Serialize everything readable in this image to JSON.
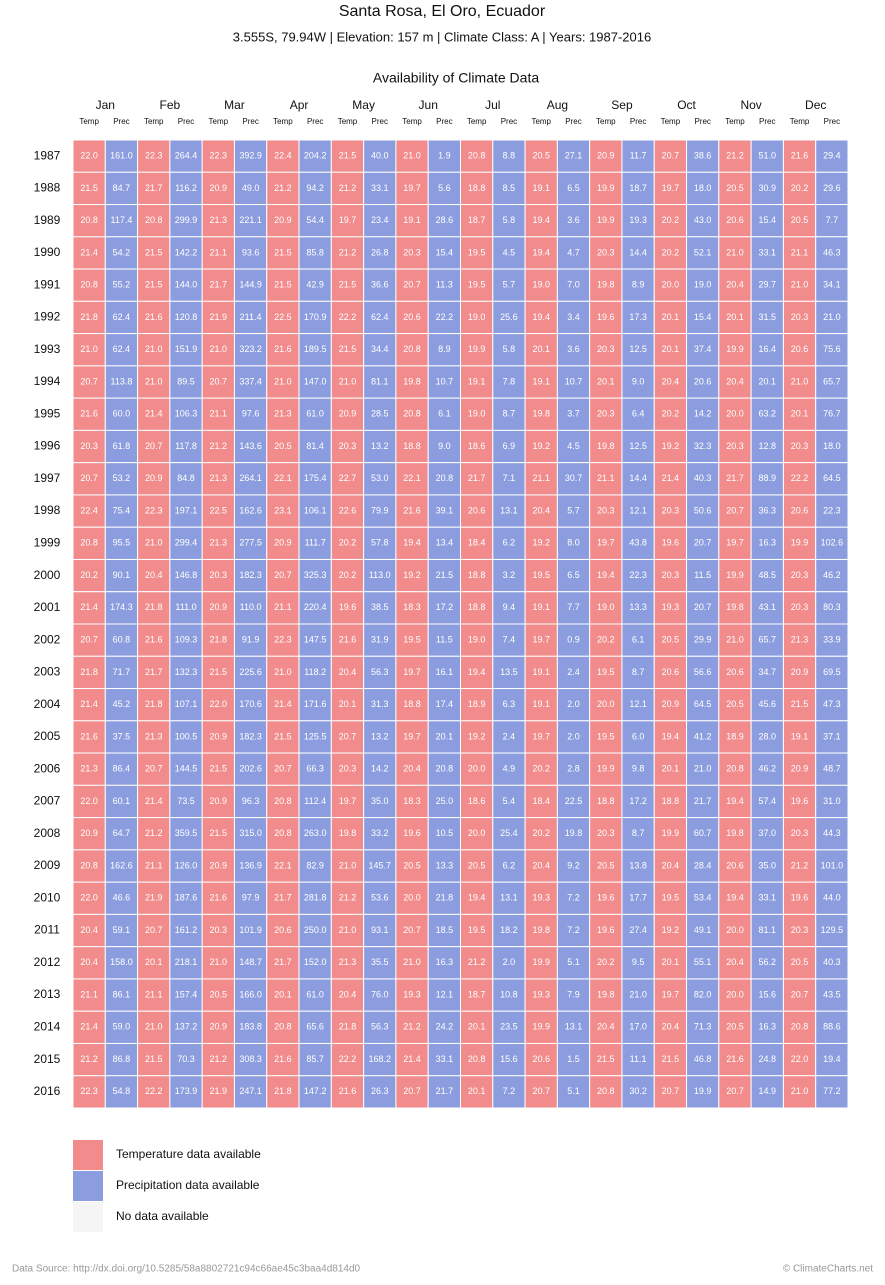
{
  "header": {
    "title": "Santa Rosa, El Oro, Ecuador",
    "subtitle": "3.555S, 79.94W | Elevation: 157 m | Climate Class: A | Years: 1987-2016",
    "chart_title": "Availability of Climate Data"
  },
  "table": {
    "months": [
      "Jan",
      "Feb",
      "Mar",
      "Apr",
      "May",
      "Jun",
      "Jul",
      "Aug",
      "Sep",
      "Oct",
      "Nov",
      "Dec"
    ],
    "subheaders": [
      "Temp",
      "Prec"
    ],
    "colors": {
      "temp": "#f28b8b",
      "prec": "#8b9ddf",
      "none": "#f5f5f5"
    },
    "rows": [
      {
        "year": "1987",
        "cells": [
          "22.0",
          "161.0",
          "22.3",
          "264.4",
          "22.3",
          "392.9",
          "22.4",
          "204.2",
          "21.5",
          "40.0",
          "21.0",
          "1.9",
          "20.8",
          "8.8",
          "20.5",
          "27.1",
          "20.9",
          "11.7",
          "20.7",
          "38.6",
          "21.2",
          "51.0",
          "21.6",
          "29.4"
        ]
      },
      {
        "year": "1988",
        "cells": [
          "21.5",
          "84.7",
          "21.7",
          "116.2",
          "20.9",
          "49.0",
          "21.2",
          "94.2",
          "21.2",
          "33.1",
          "19.7",
          "5.6",
          "18.8",
          "8.5",
          "19.1",
          "6.5",
          "19.9",
          "18.7",
          "19.7",
          "18.0",
          "20.5",
          "30.9",
          "20.2",
          "29.6"
        ]
      },
      {
        "year": "1989",
        "cells": [
          "20.8",
          "117.4",
          "20.8",
          "299.9",
          "21.3",
          "221.1",
          "20.9",
          "54.4",
          "19.7",
          "23.4",
          "19.1",
          "28.6",
          "18.7",
          "5.8",
          "19.4",
          "3.6",
          "19.9",
          "19.3",
          "20.2",
          "43.0",
          "20.6",
          "15.4",
          "20.5",
          "7.7"
        ]
      },
      {
        "year": "1990",
        "cells": [
          "21.4",
          "54.2",
          "21.5",
          "142.2",
          "21.1",
          "93.6",
          "21.5",
          "85.8",
          "21.2",
          "26.8",
          "20.3",
          "15.4",
          "19.5",
          "4.5",
          "19.4",
          "4.7",
          "20.3",
          "14.4",
          "20.2",
          "52.1",
          "21.0",
          "33.1",
          "21.1",
          "46.3"
        ]
      },
      {
        "year": "1991",
        "cells": [
          "20.8",
          "55.2",
          "21.5",
          "144.0",
          "21.7",
          "144.9",
          "21.5",
          "42.9",
          "21.5",
          "36.6",
          "20.7",
          "11.3",
          "19.5",
          "5.7",
          "19.0",
          "7.0",
          "19.8",
          "8.9",
          "20.0",
          "19.0",
          "20.4",
          "29.7",
          "21.0",
          "34.1"
        ]
      },
      {
        "year": "1992",
        "cells": [
          "21.8",
          "62.4",
          "21.6",
          "120.8",
          "21.9",
          "211.4",
          "22.5",
          "170.9",
          "22.2",
          "62.4",
          "20.6",
          "22.2",
          "19.0",
          "25.6",
          "19.4",
          "3.4",
          "19.6",
          "17.3",
          "20.1",
          "15.4",
          "20.1",
          "31.5",
          "20.3",
          "21.0"
        ]
      },
      {
        "year": "1993",
        "cells": [
          "21.0",
          "62.4",
          "21.0",
          "151.9",
          "21.0",
          "323.2",
          "21.6",
          "189.5",
          "21.5",
          "34.4",
          "20.8",
          "8.9",
          "19.9",
          "5.8",
          "20.1",
          "3.6",
          "20.3",
          "12.5",
          "20.1",
          "37.4",
          "19.9",
          "16.4",
          "20.6",
          "75.6"
        ]
      },
      {
        "year": "1994",
        "cells": [
          "20.7",
          "113.8",
          "21.0",
          "89.5",
          "20.7",
          "337.4",
          "21.0",
          "147.0",
          "21.0",
          "81.1",
          "19.8",
          "10.7",
          "19.1",
          "7.8",
          "19.1",
          "10.7",
          "20.1",
          "9.0",
          "20.4",
          "20.6",
          "20.4",
          "20.1",
          "21.0",
          "65.7"
        ]
      },
      {
        "year": "1995",
        "cells": [
          "21.6",
          "60.0",
          "21.4",
          "106.3",
          "21.1",
          "97.6",
          "21.3",
          "61.0",
          "20.9",
          "28.5",
          "20.8",
          "6.1",
          "19.0",
          "8.7",
          "19.8",
          "3.7",
          "20.3",
          "6.4",
          "20.2",
          "14.2",
          "20.0",
          "63.2",
          "20.1",
          "76.7"
        ]
      },
      {
        "year": "1996",
        "cells": [
          "20.3",
          "61.8",
          "20.7",
          "117.8",
          "21.2",
          "143.6",
          "20.5",
          "81.4",
          "20.3",
          "13.2",
          "18.8",
          "9.0",
          "18.6",
          "6.9",
          "19.2",
          "4.5",
          "19.8",
          "12.5",
          "19.2",
          "32.3",
          "20.3",
          "12.8",
          "20.3",
          "18.0"
        ]
      },
      {
        "year": "1997",
        "cells": [
          "20.7",
          "53.2",
          "20.9",
          "84.8",
          "21.3",
          "264.1",
          "22.1",
          "175.4",
          "22.7",
          "53.0",
          "22.1",
          "20.8",
          "21.7",
          "7.1",
          "21.1",
          "30.7",
          "21.1",
          "14.4",
          "21.4",
          "40.3",
          "21.7",
          "88.9",
          "22.2",
          "64.5"
        ]
      },
      {
        "year": "1998",
        "cells": [
          "22.4",
          "75.4",
          "22.3",
          "197.1",
          "22.5",
          "162.6",
          "23.1",
          "106.1",
          "22.6",
          "79.9",
          "21.6",
          "39.1",
          "20.6",
          "13.1",
          "20.4",
          "5.7",
          "20.3",
          "12.1",
          "20.3",
          "50.6",
          "20.7",
          "36.3",
          "20.6",
          "22.3"
        ]
      },
      {
        "year": "1999",
        "cells": [
          "20.8",
          "95.5",
          "21.0",
          "299.4",
          "21.3",
          "277.5",
          "20.9",
          "111.7",
          "20.2",
          "57.8",
          "19.4",
          "13.4",
          "18.4",
          "6.2",
          "19.2",
          "8.0",
          "19.7",
          "43.8",
          "19.6",
          "20.7",
          "19.7",
          "16.3",
          "19.9",
          "102.6"
        ]
      },
      {
        "year": "2000",
        "cells": [
          "20.2",
          "90.1",
          "20.4",
          "146.8",
          "20.3",
          "182.3",
          "20.7",
          "325.3",
          "20.2",
          "113.0",
          "19.2",
          "21.5",
          "18.8",
          "3.2",
          "19.5",
          "6.5",
          "19.4",
          "22.3",
          "20.3",
          "11.5",
          "19.9",
          "48.5",
          "20.3",
          "46.2"
        ]
      },
      {
        "year": "2001",
        "cells": [
          "21.4",
          "174.3",
          "21.8",
          "111.0",
          "20.9",
          "110.0",
          "21.1",
          "220.4",
          "19.6",
          "38.5",
          "18.3",
          "17.2",
          "18.8",
          "9.4",
          "19.1",
          "7.7",
          "19.0",
          "13.3",
          "19.3",
          "20.7",
          "19.8",
          "43.1",
          "20.3",
          "80.3"
        ]
      },
      {
        "year": "2002",
        "cells": [
          "20.7",
          "60.8",
          "21.6",
          "109.3",
          "21.8",
          "91.9",
          "22.3",
          "147.5",
          "21.6",
          "31.9",
          "19.5",
          "11.5",
          "19.0",
          "7.4",
          "19.7",
          "0.9",
          "20.2",
          "6.1",
          "20.5",
          "29.9",
          "21.0",
          "65.7",
          "21.3",
          "33.9"
        ]
      },
      {
        "year": "2003",
        "cells": [
          "21.8",
          "71.7",
          "21.7",
          "132.3",
          "21.5",
          "225.6",
          "21.0",
          "118.2",
          "20.4",
          "56.3",
          "19.7",
          "16.1",
          "19.4",
          "13.5",
          "19.1",
          "2.4",
          "19.5",
          "8.7",
          "20.6",
          "56.6",
          "20.6",
          "34.7",
          "20.9",
          "69.5"
        ]
      },
      {
        "year": "2004",
        "cells": [
          "21.4",
          "45.2",
          "21.8",
          "107.1",
          "22.0",
          "170.6",
          "21.4",
          "171.6",
          "20.1",
          "31.3",
          "18.8",
          "17.4",
          "18.9",
          "6.3",
          "19.1",
          "2.0",
          "20.0",
          "12.1",
          "20.9",
          "64.5",
          "20.5",
          "45.6",
          "21.5",
          "47.3"
        ]
      },
      {
        "year": "2005",
        "cells": [
          "21.6",
          "37.5",
          "21.3",
          "100.5",
          "20.9",
          "182.3",
          "21.5",
          "125.5",
          "20.7",
          "13.2",
          "19.7",
          "20.1",
          "19.2",
          "2.4",
          "19.7",
          "2.0",
          "19.5",
          "6.0",
          "19.4",
          "41.2",
          "18.9",
          "28.0",
          "19.1",
          "37.1"
        ]
      },
      {
        "year": "2006",
        "cells": [
          "21.3",
          "86.4",
          "20.7",
          "144.5",
          "21.5",
          "202.6",
          "20.7",
          "66.3",
          "20.3",
          "14.2",
          "20.4",
          "20.8",
          "20.0",
          "4.9",
          "20.2",
          "2.8",
          "19.9",
          "9.8",
          "20.1",
          "21.0",
          "20.8",
          "46.2",
          "20.9",
          "48.7"
        ]
      },
      {
        "year": "2007",
        "cells": [
          "22.0",
          "60.1",
          "21.4",
          "73.5",
          "20.9",
          "96.3",
          "20.8",
          "112.4",
          "19.7",
          "35.0",
          "18.3",
          "25.0",
          "18.6",
          "5.4",
          "18.4",
          "22.5",
          "18.8",
          "17.2",
          "18.8",
          "21.7",
          "19.4",
          "57.4",
          "19.6",
          "31.0"
        ]
      },
      {
        "year": "2008",
        "cells": [
          "20.9",
          "64.7",
          "21.2",
          "359.5",
          "21.5",
          "315.0",
          "20.8",
          "263.0",
          "19.8",
          "33.2",
          "19.6",
          "10.5",
          "20.0",
          "25.4",
          "20.2",
          "19.8",
          "20.3",
          "8.7",
          "19.9",
          "60.7",
          "19.8",
          "37.0",
          "20.3",
          "44.3"
        ]
      },
      {
        "year": "2009",
        "cells": [
          "20.8",
          "162.6",
          "21.1",
          "126.0",
          "20.9",
          "136.9",
          "22.1",
          "82.9",
          "21.0",
          "145.7",
          "20.5",
          "13.3",
          "20.5",
          "6.2",
          "20.4",
          "9.2",
          "20.5",
          "13.8",
          "20.4",
          "28.4",
          "20.6",
          "35.0",
          "21.2",
          "101.0"
        ]
      },
      {
        "year": "2010",
        "cells": [
          "22.0",
          "46.6",
          "21.9",
          "187.6",
          "21.6",
          "97.9",
          "21.7",
          "281.8",
          "21.2",
          "53.6",
          "20.0",
          "21.8",
          "19.4",
          "13.1",
          "19.3",
          "7.2",
          "19.6",
          "17.7",
          "19.5",
          "53.4",
          "19.4",
          "33.1",
          "19.6",
          "44.0"
        ]
      },
      {
        "year": "2011",
        "cells": [
          "20.4",
          "59.1",
          "20.7",
          "161.2",
          "20.3",
          "101.9",
          "20.6",
          "250.0",
          "21.0",
          "93.1",
          "20.7",
          "18.5",
          "19.5",
          "18.2",
          "19.8",
          "7.2",
          "19.6",
          "27.4",
          "19.2",
          "49.1",
          "20.0",
          "81.1",
          "20.3",
          "129.5"
        ]
      },
      {
        "year": "2012",
        "cells": [
          "20.4",
          "158.0",
          "20.1",
          "218.1",
          "21.0",
          "148.7",
          "21.7",
          "152.0",
          "21.3",
          "35.5",
          "21.0",
          "16.3",
          "21.2",
          "2.0",
          "19.9",
          "5.1",
          "20.2",
          "9.5",
          "20.1",
          "55.1",
          "20.4",
          "56.2",
          "20.5",
          "40.3"
        ]
      },
      {
        "year": "2013",
        "cells": [
          "21.1",
          "86.1",
          "21.1",
          "157.4",
          "20.5",
          "166.0",
          "20.1",
          "61.0",
          "20.4",
          "76.0",
          "19.3",
          "12.1",
          "18.7",
          "10.8",
          "19.3",
          "7.9",
          "19.8",
          "21.0",
          "19.7",
          "82.0",
          "20.0",
          "15.6",
          "20.7",
          "43.5"
        ]
      },
      {
        "year": "2014",
        "cells": [
          "21.4",
          "59.0",
          "21.0",
          "137.2",
          "20.9",
          "183.8",
          "20.8",
          "65.6",
          "21.8",
          "56.3",
          "21.2",
          "24.2",
          "20.1",
          "23.5",
          "19.9",
          "13.1",
          "20.4",
          "17.0",
          "20.4",
          "71.3",
          "20.5",
          "16.3",
          "20.8",
          "88.6"
        ]
      },
      {
        "year": "2015",
        "cells": [
          "21.2",
          "86.8",
          "21.5",
          "70.3",
          "21.2",
          "308.3",
          "21.6",
          "85.7",
          "22.2",
          "168.2",
          "21.4",
          "33.1",
          "20.8",
          "15.6",
          "20.6",
          "1.5",
          "21.5",
          "11.1",
          "21.5",
          "46.8",
          "21.6",
          "24.8",
          "22.0",
          "19.4"
        ]
      },
      {
        "year": "2016",
        "cells": [
          "22.3",
          "54.8",
          "22.2",
          "173.9",
          "21.9",
          "247.1",
          "21.8",
          "147.2",
          "21.6",
          "26.3",
          "20.7",
          "21.7",
          "20.1",
          "7.2",
          "20.7",
          "5.1",
          "20.8",
          "30.2",
          "20.7",
          "19.9",
          "20.7",
          "14.9",
          "21.0",
          "77.2"
        ]
      }
    ]
  },
  "legend": [
    "Temperature data available",
    "Precipitation data available",
    "No data available"
  ],
  "footer": {
    "source": "Data Source: http://dx.doi.org/10.5285/58a8802721c94c66ae45c3baa4d814d0",
    "credit": "© ClimateCharts.net"
  }
}
